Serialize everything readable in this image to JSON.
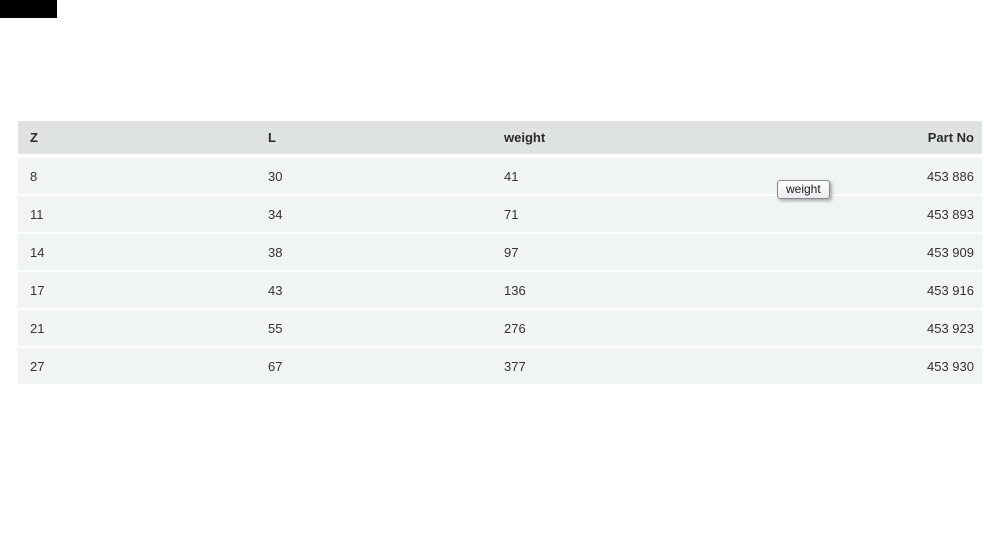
{
  "page": {
    "background_color": "#ffffff"
  },
  "redaction_box": {
    "color": "#000000"
  },
  "table": {
    "header_bg_color": "#dee3e1",
    "row_bg_color": "#f0f4f3",
    "text_color": "#333333",
    "columns": [
      {
        "key": "z",
        "label": "Z",
        "align": "left"
      },
      {
        "key": "l",
        "label": "L",
        "align": "left"
      },
      {
        "key": "weight",
        "label": "weight",
        "align": "left"
      },
      {
        "key": "part_no",
        "label": "Part No",
        "align": "right"
      }
    ],
    "rows": [
      {
        "z": "8",
        "l": "30",
        "weight": "41",
        "part_no": "453 886"
      },
      {
        "z": "11",
        "l": "34",
        "weight": "71",
        "part_no": "453 893"
      },
      {
        "z": "14",
        "l": "38",
        "weight": "97",
        "part_no": "453 909"
      },
      {
        "z": "17",
        "l": "43",
        "weight": "136",
        "part_no": "453 916"
      },
      {
        "z": "21",
        "l": "55",
        "weight": "276",
        "part_no": "453 923"
      },
      {
        "z": "27",
        "l": "67",
        "weight": "377",
        "part_no": "453 930"
      }
    ]
  },
  "tooltip": {
    "text": "weight"
  }
}
